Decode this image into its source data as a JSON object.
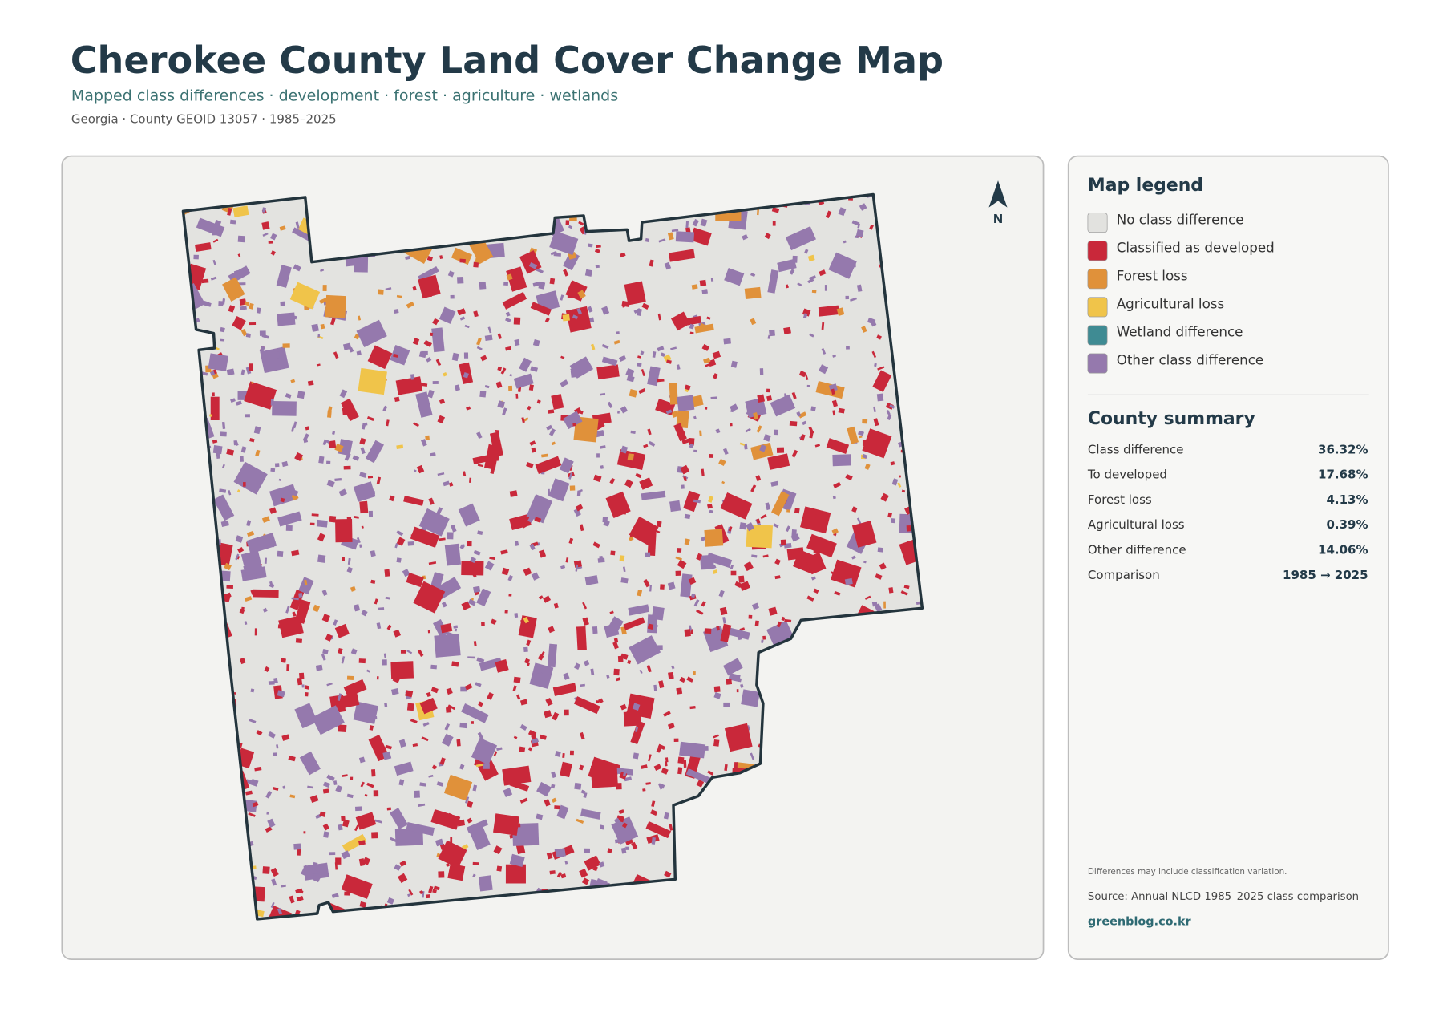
{
  "header": {
    "title": "Cherokee County Land Cover Change Map",
    "subtitle": "Mapped class differences · development · forest · agriculture · wetlands",
    "meta": "Georgia · County GEOID 13057 · 1985–2025"
  },
  "north": "N",
  "legend": {
    "title": "Map legend",
    "items": [
      {
        "label": "No class difference",
        "color": "#e2e2df"
      },
      {
        "label": "Classified as developed",
        "color": "#c9283a"
      },
      {
        "label": "Forest loss",
        "color": "#e0913a"
      },
      {
        "label": "Agricultural loss",
        "color": "#f0c44a"
      },
      {
        "label": "Wetland difference",
        "color": "#3f8b93"
      },
      {
        "label": "Other class difference",
        "color": "#9579ad"
      }
    ]
  },
  "summary": {
    "title": "County summary",
    "rows": [
      {
        "label": "Class difference",
        "value": "36.32%"
      },
      {
        "label": "To developed",
        "value": "17.68%"
      },
      {
        "label": "Forest loss",
        "value": "4.13%"
      },
      {
        "label": "Agricultural loss",
        "value": "0.39%"
      },
      {
        "label": "Other difference",
        "value": "14.06%"
      },
      {
        "label": "Comparison",
        "value": "1985 → 2025"
      }
    ]
  },
  "notes": {
    "caveat": "Differences may include classification variation.",
    "source": "Source: Annual NLCD 1985–2025 class comparison",
    "link": "greenblog.co.kr"
  }
}
